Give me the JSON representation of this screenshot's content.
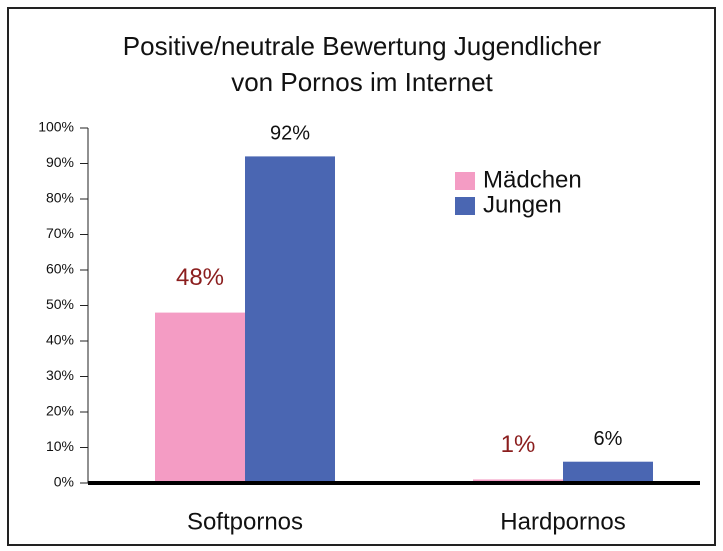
{
  "chart_data": {
    "type": "bar",
    "title": [
      "Positive/neutrale Bewertung Jugendlicher",
      "von Pornos im Internet"
    ],
    "categories": [
      "Softpornos",
      "Hardpornos"
    ],
    "series": [
      {
        "name": "Mädchen",
        "color": "#f49cc4",
        "label_color": "#8b1e1e",
        "values": [
          48,
          1
        ],
        "value_labels": [
          "48%",
          "1%"
        ]
      },
      {
        "name": "Jungen",
        "color": "#4a66b2",
        "label_color": "#111111",
        "values": [
          92,
          6
        ],
        "value_labels": [
          "92%",
          "6%"
        ]
      }
    ],
    "ylim": [
      0,
      100
    ],
    "yticks": [
      {
        "value": 0,
        "label": "0%"
      },
      {
        "value": 10,
        "label": "10%"
      },
      {
        "value": 20,
        "label": "20%"
      },
      {
        "value": 30,
        "label": "30%"
      },
      {
        "value": 40,
        "label": "40%"
      },
      {
        "value": 50,
        "label": "50%"
      },
      {
        "value": 60,
        "label": "60%"
      },
      {
        "value": 70,
        "label": "70%"
      },
      {
        "value": 80,
        "label": "80%"
      },
      {
        "value": 90,
        "label": "90%"
      },
      {
        "value": 100,
        "label": "100%"
      }
    ],
    "legend": "upper right"
  }
}
